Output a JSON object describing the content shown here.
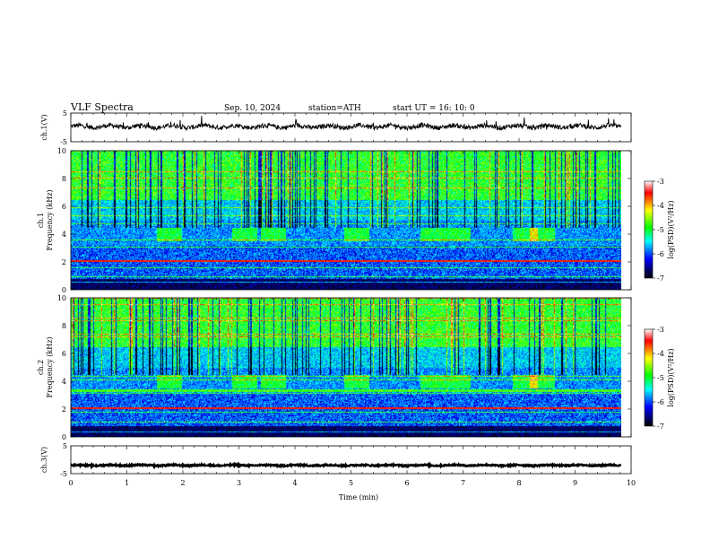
{
  "header": {
    "title": "VLF  Spectra",
    "date": "Sep. 10, 2024",
    "station": "station=ATH",
    "start": "start  UT  =    16: 10: 0"
  },
  "chart_data": [
    {
      "type": "line",
      "id": "ch1-waveform",
      "ylabel": "ch.1(V)",
      "ylim": [
        -5,
        5
      ],
      "yticks": [
        "5",
        "-5"
      ],
      "xlim": [
        0,
        10
      ],
      "x_extent": [
        0,
        9.82
      ],
      "trace_level": 0.3,
      "trace_noise": 0.8
    },
    {
      "type": "heatmap",
      "id": "ch1-spectrogram",
      "ylabel": "ch.1\nFrequency  (kHz)",
      "ylabel_lines": [
        "ch.1",
        "Frequency  (kHz)"
      ],
      "ylim": [
        0,
        10
      ],
      "yticks": [
        "0",
        "2",
        "4",
        "6",
        "8",
        "10"
      ],
      "xlim": [
        0,
        10
      ],
      "x_extent": [
        0,
        9.82
      ],
      "colorbar": {
        "label": "log(PSD)(V²/Hz)",
        "range": [
          -7,
          -3
        ],
        "ticks": [
          "-3",
          "-4",
          "-5",
          "-6",
          "-7"
        ],
        "colors": [
          "#ffffff",
          "#ff0000",
          "#ffff00",
          "#00ff00",
          "#00ffff",
          "#0000ff",
          "#000000"
        ]
      },
      "bursts_min": [
        1.75,
        3.1,
        3.6,
        5.1,
        6.45,
        6.9,
        8.1,
        8.4
      ]
    },
    {
      "type": "heatmap",
      "id": "ch2-spectrogram",
      "ylabel": "ch.2\nFrequency  (kHz)",
      "ylabel_lines": [
        "ch.2",
        "Frequency  (kHz)"
      ],
      "ylim": [
        0,
        10
      ],
      "yticks": [
        "0",
        "2",
        "4",
        "6",
        "8",
        "10"
      ],
      "xlim": [
        0,
        10
      ],
      "x_extent": [
        0,
        9.82
      ],
      "colorbar": {
        "label": "log(PSD)(V²/Hz)",
        "range": [
          -7,
          -3
        ],
        "ticks": [
          "-3",
          "-4",
          "-5",
          "-6",
          "-7"
        ],
        "colors": [
          "#ffffff",
          "#ff0000",
          "#ffff00",
          "#00ff00",
          "#00ffff",
          "#0000ff",
          "#000000"
        ]
      },
      "bursts_min": [
        1.75,
        3.1,
        3.6,
        5.1,
        6.45,
        6.9,
        8.1,
        8.4
      ]
    },
    {
      "type": "line",
      "id": "ch3-waveform",
      "ylabel": "ch.3(V)",
      "ylim": [
        -5,
        5
      ],
      "yticks": [
        "5",
        "-5"
      ],
      "xlim": [
        0,
        10
      ],
      "x_extent": [
        0,
        9.82
      ],
      "trace_level": -2.0,
      "trace_noise": 0.25
    }
  ],
  "xaxis": {
    "label": "Time  (min)",
    "ticks": [
      "0",
      "1",
      "2",
      "3",
      "4",
      "5",
      "6",
      "7",
      "8",
      "9",
      "10"
    ]
  }
}
